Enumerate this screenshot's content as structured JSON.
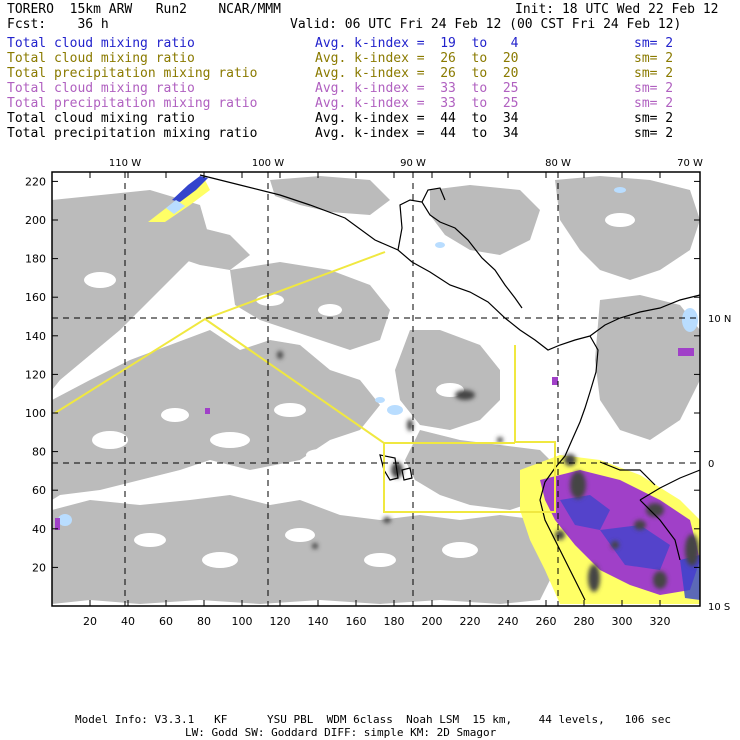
{
  "header": {
    "line1_left": "TORERO  15km ARW   Run2    NCAR/MMM",
    "line1_right": "Init: 18 UTC Wed 22 Feb 12",
    "line2_left": "Fcst:    36 h",
    "line2_right": "Valid: 06 UTC Fri 24 Feb 12 (00 CST Fri 24 Feb 12)"
  },
  "legend": [
    {
      "label": "Total cloud mixing ratio",
      "index": "Avg. k-index =  19  to   4",
      "sm": "sm= 2",
      "color": "#2222cc"
    },
    {
      "label": "Total cloud mixing ratio",
      "index": "Avg. k-index =  26  to  20",
      "sm": "sm= 2",
      "color": "#8a7a00"
    },
    {
      "label": "Total precipitation mixing ratio",
      "index": "Avg. k-index =  26  to  20",
      "sm": "sm= 2",
      "color": "#8a7a00"
    },
    {
      "label": "Total cloud mixing ratio",
      "index": "Avg. k-index =  33  to  25",
      "sm": "sm= 2",
      "color": "#b060c0"
    },
    {
      "label": "Total precipitation mixing ratio",
      "index": "Avg. k-index =  33  to  25",
      "sm": "sm= 2",
      "color": "#b060c0"
    },
    {
      "label": "Total cloud mixing ratio",
      "index": "Avg. k-index =  44  to  34",
      "sm": "sm= 2",
      "color": "#000000"
    },
    {
      "label": "Total precipitation mixing ratio",
      "index": "Avg. k-index =  44  to  34",
      "sm": "sm= 2",
      "color": "#000000"
    }
  ],
  "axes": {
    "x_ticks": [
      "20",
      "40",
      "60",
      "80",
      "100",
      "120",
      "140",
      "160",
      "180",
      "200",
      "220",
      "240",
      "260",
      "280",
      "300",
      "320"
    ],
    "y_ticks": [
      "20",
      "40",
      "60",
      "80",
      "100",
      "120",
      "140",
      "160",
      "180",
      "200",
      "220"
    ],
    "lon_labels": [
      "110 W",
      "100 W",
      "90 W",
      "80 W",
      "70 W"
    ],
    "lat_labels": [
      "10 N",
      "0",
      "10 S"
    ]
  },
  "colors": {
    "cloud_gray": "#bbbbbb",
    "dark_gray": "#444444",
    "light_blue": "#b9ddff",
    "blue": "#3344cc",
    "yellow": "#ffff66",
    "purple": "#a040c8",
    "domain_line": "#f0e840"
  },
  "footer": {
    "line1": "Model Info: V3.3.1   KF      YSU PBL  WDM 6class  Noah LSM  15 km,    44 levels,   106 sec",
    "line2": "LW: Godd SW: Goddard DIFF: simple KM: 2D Smagor"
  }
}
